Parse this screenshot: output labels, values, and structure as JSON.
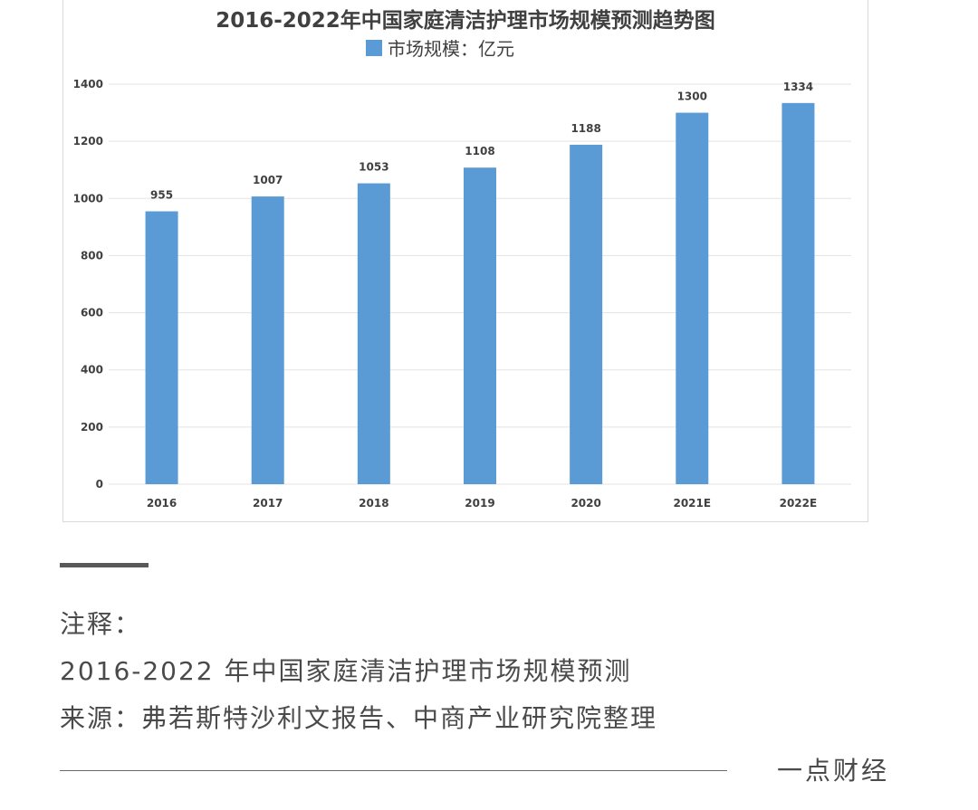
{
  "chart_data": {
    "type": "bar",
    "title": "2016-2022年中国家庭清洁护理市场规模预测趋势图",
    "legend": {
      "position": "top-center",
      "entries": [
        "市场规模：亿元"
      ]
    },
    "categories": [
      "2016",
      "2017",
      "2018",
      "2019",
      "2020",
      "2021E",
      "2022E"
    ],
    "series": [
      {
        "name": "市场规模：亿元",
        "values": [
          955,
          1007,
          1053,
          1108,
          1188,
          1300,
          1334
        ]
      }
    ],
    "data_labels": [
      "955",
      "1007",
      "1053",
      "1108",
      "1188",
      "1300",
      "1334"
    ],
    "y_ticks": [
      "0",
      "200",
      "400",
      "600",
      "800",
      "1000",
      "1200",
      "1400"
    ],
    "ylim": [
      0,
      1400
    ],
    "grid": true,
    "colors": {
      "bar": "#5b9bd5"
    }
  },
  "notes": {
    "label": "注释：",
    "description": "2016-2022 年中国家庭清洁护理市场规模预测",
    "source": "来源：弗若斯特沙利文报告、中商产业研究院整理"
  },
  "brand": "一点财经"
}
